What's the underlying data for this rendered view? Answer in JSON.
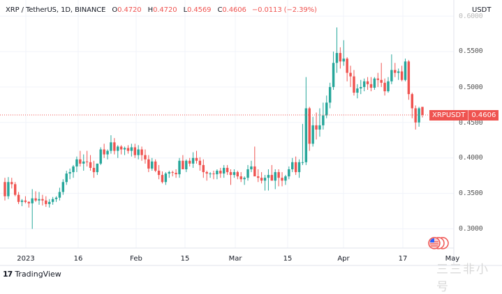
{
  "header": {
    "symbol": "XRP / TetherUS, 1D, BINANCE",
    "open_label": "O",
    "open": "0.4720",
    "high_label": "H",
    "high": "0.4720",
    "low_label": "L",
    "low": "0.4569",
    "close_label": "C",
    "close": "0.4606",
    "change": "−0.0113 (−2.39%)"
  },
  "price_axis": {
    "unit": "USDT",
    "labels": [
      "0.6000",
      "0.5500",
      "0.5000",
      "0.4500",
      "0.4000",
      "0.3500",
      "0.3000"
    ]
  },
  "time_axis": {
    "labels": [
      "2023",
      "16",
      "Feb",
      "15",
      "Mar",
      "15",
      "Apr",
      "17",
      "May"
    ]
  },
  "last_price_badge": {
    "symbol": "XRPUSDT",
    "price": "0.4606"
  },
  "footer": {
    "brand": "TradingView"
  },
  "watermark": "三三非小号",
  "colors": {
    "up": "#26a69a",
    "down": "#ef5350",
    "grid": "#f0f3fa",
    "text": "#131722"
  },
  "chart_data": {
    "type": "candlestick",
    "title": "XRP / TetherUS, 1D, BINANCE",
    "xlabel": "",
    "ylabel": "USDT",
    "ylim": [
      0.28,
      0.6
    ],
    "x_ticks": [
      "2023",
      "16",
      "Feb",
      "15",
      "Mar",
      "15",
      "Apr",
      "17",
      "May"
    ],
    "y_ticks": [
      0.3,
      0.35,
      0.4,
      0.45,
      0.5,
      0.55,
      0.6
    ],
    "grid": true,
    "last_price": 0.4606,
    "ohlc": [
      [
        0.366,
        0.372,
        0.34,
        0.346
      ],
      [
        0.346,
        0.373,
        0.342,
        0.366
      ],
      [
        0.366,
        0.372,
        0.357,
        0.363
      ],
      [
        0.363,
        0.366,
        0.346,
        0.348
      ],
      [
        0.348,
        0.352,
        0.335,
        0.338
      ],
      [
        0.338,
        0.342,
        0.332,
        0.34
      ],
      [
        0.34,
        0.346,
        0.336,
        0.338
      ],
      [
        0.338,
        0.339,
        0.33,
        0.336
      ],
      [
        0.336,
        0.356,
        0.3,
        0.343
      ],
      [
        0.343,
        0.353,
        0.338,
        0.34
      ],
      [
        0.34,
        0.352,
        0.334,
        0.342
      ],
      [
        0.342,
        0.348,
        0.333,
        0.34
      ],
      [
        0.34,
        0.346,
        0.331,
        0.335
      ],
      [
        0.335,
        0.342,
        0.33,
        0.338
      ],
      [
        0.338,
        0.345,
        0.334,
        0.342
      ],
      [
        0.342,
        0.346,
        0.338,
        0.344
      ],
      [
        0.344,
        0.358,
        0.34,
        0.352
      ],
      [
        0.352,
        0.37,
        0.348,
        0.366
      ],
      [
        0.366,
        0.382,
        0.362,
        0.378
      ],
      [
        0.378,
        0.385,
        0.37,
        0.38
      ],
      [
        0.38,
        0.39,
        0.372,
        0.388
      ],
      [
        0.388,
        0.402,
        0.38,
        0.398
      ],
      [
        0.398,
        0.41,
        0.388,
        0.392
      ],
      [
        0.392,
        0.405,
        0.382,
        0.395
      ],
      [
        0.395,
        0.41,
        0.388,
        0.394
      ],
      [
        0.394,
        0.404,
        0.382,
        0.386
      ],
      [
        0.386,
        0.396,
        0.372,
        0.38
      ],
      [
        0.38,
        0.392,
        0.376,
        0.392
      ],
      [
        0.392,
        0.415,
        0.39,
        0.412
      ],
      [
        0.412,
        0.42,
        0.4,
        0.405
      ],
      [
        0.405,
        0.412,
        0.398,
        0.41
      ],
      [
        0.41,
        0.432,
        0.406,
        0.422
      ],
      [
        0.422,
        0.428,
        0.405,
        0.41
      ],
      [
        0.41,
        0.418,
        0.4,
        0.416
      ],
      [
        0.416,
        0.418,
        0.405,
        0.412
      ],
      [
        0.412,
        0.416,
        0.404,
        0.414
      ],
      [
        0.414,
        0.418,
        0.406,
        0.41
      ],
      [
        0.41,
        0.42,
        0.402,
        0.415
      ],
      [
        0.415,
        0.42,
        0.4,
        0.404
      ],
      [
        0.404,
        0.418,
        0.398,
        0.412
      ],
      [
        0.412,
        0.416,
        0.396,
        0.404
      ],
      [
        0.404,
        0.412,
        0.392,
        0.398
      ],
      [
        0.398,
        0.404,
        0.38,
        0.385
      ],
      [
        0.385,
        0.4,
        0.382,
        0.395
      ],
      [
        0.395,
        0.398,
        0.38,
        0.382
      ],
      [
        0.382,
        0.39,
        0.37,
        0.376
      ],
      [
        0.376,
        0.381,
        0.364,
        0.366
      ],
      [
        0.366,
        0.38,
        0.362,
        0.378
      ],
      [
        0.378,
        0.382,
        0.372,
        0.38
      ],
      [
        0.38,
        0.382,
        0.374,
        0.379
      ],
      [
        0.379,
        0.384,
        0.372,
        0.377
      ],
      [
        0.377,
        0.4,
        0.372,
        0.396
      ],
      [
        0.396,
        0.404,
        0.392,
        0.384
      ],
      [
        0.384,
        0.398,
        0.38,
        0.396
      ],
      [
        0.396,
        0.4,
        0.388,
        0.392
      ],
      [
        0.392,
        0.408,
        0.386,
        0.4
      ],
      [
        0.4,
        0.41,
        0.392,
        0.396
      ],
      [
        0.396,
        0.401,
        0.382,
        0.39
      ],
      [
        0.39,
        0.398,
        0.372,
        0.38
      ],
      [
        0.38,
        0.382,
        0.368,
        0.378
      ],
      [
        0.378,
        0.38,
        0.372,
        0.378
      ],
      [
        0.378,
        0.382,
        0.37,
        0.377
      ],
      [
        0.377,
        0.384,
        0.37,
        0.382
      ],
      [
        0.382,
        0.386,
        0.372,
        0.378
      ],
      [
        0.378,
        0.39,
        0.372,
        0.386
      ],
      [
        0.386,
        0.39,
        0.376,
        0.38
      ],
      [
        0.38,
        0.384,
        0.362,
        0.376
      ],
      [
        0.376,
        0.384,
        0.372,
        0.38
      ],
      [
        0.38,
        0.382,
        0.37,
        0.374
      ],
      [
        0.374,
        0.38,
        0.366,
        0.37
      ],
      [
        0.37,
        0.374,
        0.362,
        0.372
      ],
      [
        0.372,
        0.39,
        0.368,
        0.384
      ],
      [
        0.384,
        0.396,
        0.38,
        0.388
      ],
      [
        0.388,
        0.416,
        0.384,
        0.374
      ],
      [
        0.374,
        0.384,
        0.366,
        0.372
      ],
      [
        0.372,
        0.38,
        0.364,
        0.368
      ],
      [
        0.368,
        0.376,
        0.354,
        0.372
      ],
      [
        0.372,
        0.384,
        0.354,
        0.376
      ],
      [
        0.376,
        0.39,
        0.368,
        0.368
      ],
      [
        0.368,
        0.384,
        0.356,
        0.38
      ],
      [
        0.38,
        0.384,
        0.36,
        0.372
      ],
      [
        0.372,
        0.38,
        0.36,
        0.368
      ],
      [
        0.368,
        0.376,
        0.362,
        0.374
      ],
      [
        0.374,
        0.388,
        0.37,
        0.384
      ],
      [
        0.384,
        0.4,
        0.38,
        0.394
      ],
      [
        0.394,
        0.402,
        0.376,
        0.38
      ],
      [
        0.38,
        0.398,
        0.372,
        0.394
      ],
      [
        0.394,
        0.448,
        0.39,
        0.394
      ],
      [
        0.394,
        0.514,
        0.39,
        0.47
      ],
      [
        0.47,
        0.472,
        0.41,
        0.42
      ],
      [
        0.42,
        0.458,
        0.416,
        0.446
      ],
      [
        0.446,
        0.464,
        0.426,
        0.44
      ],
      [
        0.44,
        0.47,
        0.43,
        0.446
      ],
      [
        0.446,
        0.478,
        0.44,
        0.46
      ],
      [
        0.46,
        0.488,
        0.456,
        0.478
      ],
      [
        0.478,
        0.506,
        0.47,
        0.5
      ],
      [
        0.5,
        0.55,
        0.496,
        0.534
      ],
      [
        0.534,
        0.584,
        0.52,
        0.548
      ],
      [
        0.548,
        0.556,
        0.526,
        0.536
      ],
      [
        0.536,
        0.566,
        0.53,
        0.54
      ],
      [
        0.54,
        0.542,
        0.508,
        0.52
      ],
      [
        0.52,
        0.53,
        0.5,
        0.515
      ],
      [
        0.515,
        0.524,
        0.488,
        0.492
      ],
      [
        0.492,
        0.504,
        0.484,
        0.498
      ],
      [
        0.498,
        0.51,
        0.49,
        0.5
      ],
      [
        0.5,
        0.512,
        0.494,
        0.508
      ],
      [
        0.508,
        0.514,
        0.496,
        0.504
      ],
      [
        0.504,
        0.514,
        0.494,
        0.499
      ],
      [
        0.499,
        0.514,
        0.496,
        0.512
      ],
      [
        0.512,
        0.52,
        0.5,
        0.51
      ],
      [
        0.51,
        0.534,
        0.5,
        0.506
      ],
      [
        0.506,
        0.512,
        0.488,
        0.494
      ],
      [
        0.494,
        0.514,
        0.492,
        0.508
      ],
      [
        0.508,
        0.546,
        0.504,
        0.524
      ],
      [
        0.524,
        0.534,
        0.514,
        0.52
      ],
      [
        0.52,
        0.526,
        0.51,
        0.522
      ],
      [
        0.522,
        0.53,
        0.508,
        0.51
      ],
      [
        0.51,
        0.54,
        0.508,
        0.536
      ],
      [
        0.536,
        0.538,
        0.482,
        0.49
      ],
      [
        0.49,
        0.492,
        0.456,
        0.47
      ],
      [
        0.47,
        0.474,
        0.44,
        0.45
      ],
      [
        0.45,
        0.472,
        0.444,
        0.47
      ],
      [
        0.472,
        0.472,
        0.457,
        0.4606
      ]
    ]
  }
}
